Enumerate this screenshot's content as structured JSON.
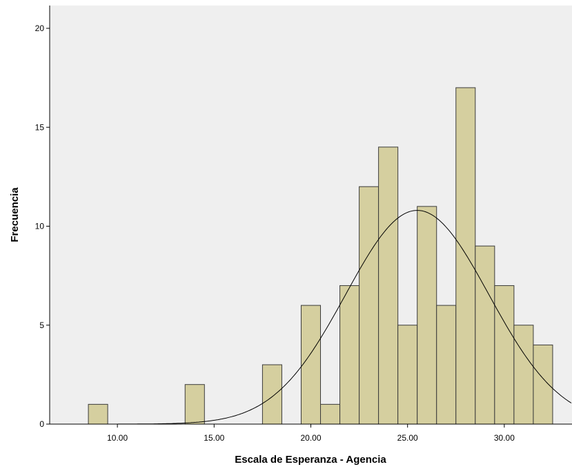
{
  "chart_data": {
    "type": "bar",
    "subtype": "histogram",
    "xlabel": "Escala de Esperanza - Agencia",
    "ylabel": "Frecuencia",
    "xlim": [
      6.5,
      33.5
    ],
    "ylim": [
      0,
      20
    ],
    "bin_width": 1,
    "bins": [
      {
        "x": 9,
        "count": 1
      },
      {
        "x": 14,
        "count": 2
      },
      {
        "x": 18,
        "count": 3
      },
      {
        "x": 20,
        "count": 6
      },
      {
        "x": 21,
        "count": 1
      },
      {
        "x": 22,
        "count": 7
      },
      {
        "x": 23,
        "count": 12
      },
      {
        "x": 24,
        "count": 14
      },
      {
        "x": 25,
        "count": 5
      },
      {
        "x": 26,
        "count": 11
      },
      {
        "x": 27,
        "count": 6
      },
      {
        "x": 28,
        "count": 17
      },
      {
        "x": 29,
        "count": 9
      },
      {
        "x": 30,
        "count": 7
      },
      {
        "x": 31,
        "count": 5
      },
      {
        "x": 32,
        "count": 4
      }
    ],
    "normal_curve": {
      "mean": 25.5,
      "sd": 3.7,
      "peak": 10.8
    },
    "x_ticks": [
      "10.00",
      "15.00",
      "20.00",
      "25.00",
      "30.00"
    ],
    "x_tick_values": [
      10,
      15,
      20,
      25,
      30
    ],
    "y_ticks": [
      "0",
      "5",
      "10",
      "15",
      "20"
    ],
    "y_tick_values": [
      0,
      5,
      10,
      15,
      20
    ],
    "grid": false,
    "legend": "none",
    "colors": {
      "bar_fill": "#d5cf9f",
      "bar_stroke": "#3a3a3a",
      "plot_background": "#efefef",
      "curve": "#000000",
      "axis": "#000000"
    }
  }
}
